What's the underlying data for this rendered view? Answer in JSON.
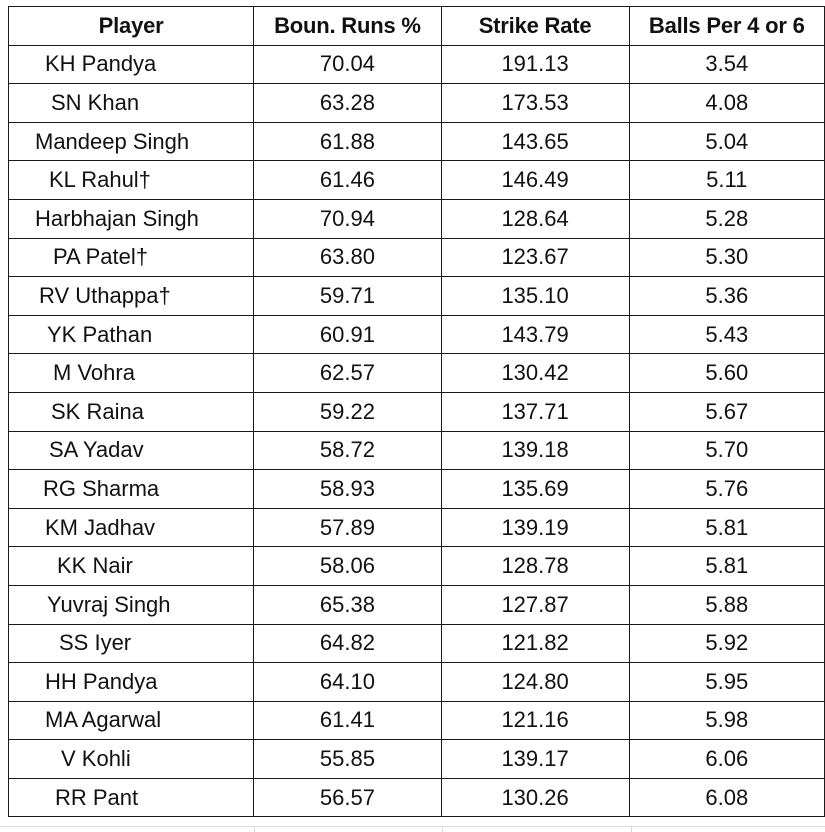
{
  "table": {
    "headers": [
      "Player",
      "Boun. Runs %",
      "Strike Rate",
      "Balls Per 4 or 6"
    ],
    "rows": [
      [
        "KH Pandya",
        "70.04",
        "191.13",
        "3.54"
      ],
      [
        "SN Khan",
        "63.28",
        "173.53",
        "4.08"
      ],
      [
        "Mandeep Singh",
        "61.88",
        "143.65",
        "5.04"
      ],
      [
        "KL Rahul†",
        "61.46",
        "146.49",
        "5.11"
      ],
      [
        "Harbhajan Singh",
        "70.94",
        "128.64",
        "5.28"
      ],
      [
        "PA Patel†",
        "63.80",
        "123.67",
        "5.30"
      ],
      [
        "RV Uthappa†",
        "59.71",
        "135.10",
        "5.36"
      ],
      [
        "YK Pathan",
        "60.91",
        "143.79",
        "5.43"
      ],
      [
        "M Vohra",
        "62.57",
        "130.42",
        "5.60"
      ],
      [
        "SK Raina",
        "59.22",
        "137.71",
        "5.67"
      ],
      [
        "SA Yadav",
        "58.72",
        "139.18",
        "5.70"
      ],
      [
        "RG Sharma",
        "58.93",
        "135.69",
        "5.76"
      ],
      [
        "KM Jadhav",
        "57.89",
        "139.19",
        "5.81"
      ],
      [
        "KK Nair",
        "58.06",
        "128.78",
        "5.81"
      ],
      [
        "Yuvraj Singh",
        "65.38",
        "127.87",
        "5.88"
      ],
      [
        "SS Iyer",
        "64.82",
        "121.82",
        "5.92"
      ],
      [
        "HH Pandya",
        "64.10",
        "124.80",
        "5.95"
      ],
      [
        "MA Agarwal",
        "61.41",
        "121.16",
        "5.98"
      ],
      [
        "V Kohli",
        "55.85",
        "139.17",
        "6.06"
      ],
      [
        "RR Pant",
        "56.57",
        "130.26",
        "6.08"
      ]
    ]
  }
}
